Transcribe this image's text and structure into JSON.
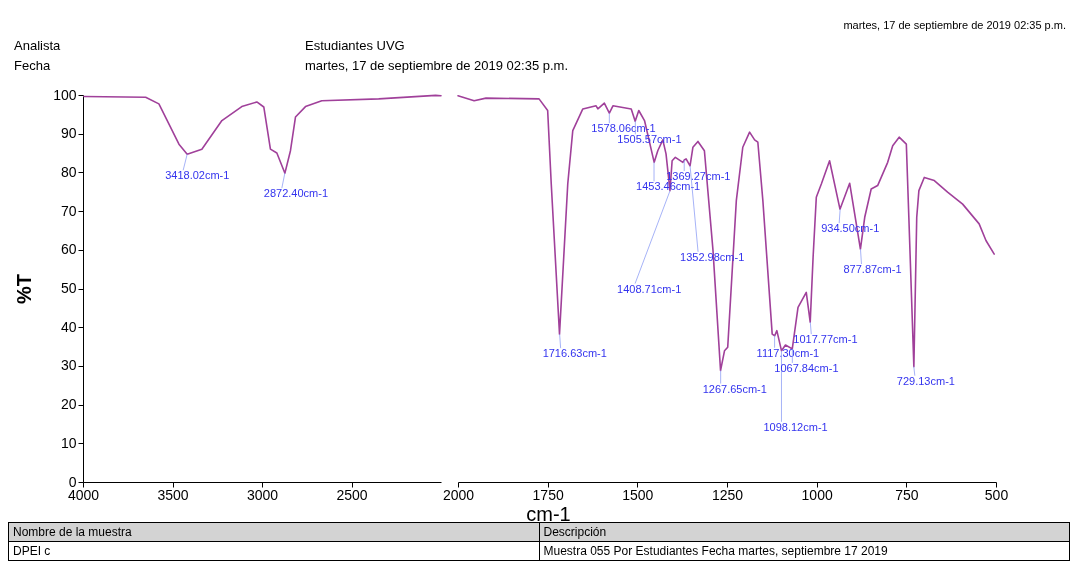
{
  "chart_data": [
    {
      "type": "line",
      "ylabel": "%T",
      "xlim": [
        4000,
        2000
      ],
      "xticks": [
        4000,
        3500,
        3000,
        2500
      ],
      "ylim": [
        0,
        100
      ],
      "yticks": [
        0,
        10,
        20,
        30,
        40,
        50,
        60,
        70,
        80,
        90,
        100
      ],
      "grid": false,
      "marker": "none",
      "line_style": "solid",
      "series": [
        {
          "color": "#a0409a",
          "x": [
            3995,
            3650,
            3576,
            3464,
            3418,
            3336,
            3224,
            3113,
            3029,
            2990,
            2953,
            2917,
            2872,
            2841,
            2813,
            2757,
            2666,
            2348,
            2030,
            2000
          ],
          "values": [
            99.6,
            99.4,
            97.7,
            87.3,
            84.7,
            86,
            93.4,
            97,
            98.2,
            96.9,
            86,
            85,
            79.8,
            85.6,
            94.3,
            97,
            98.5,
            99,
            99.9,
            99.8
          ]
        }
      ],
      "annotations": [
        "martes, 17 de septiembre de 2019 02:35 p.m.",
        "Analista",
        "Estudiantes UVG",
        "Fecha",
        "martes, 17 de septiembre de 2019 02:35 p.m.",
        {
          "text": "3418.02cm-1",
          "x": 3418.02,
          "y": 84.7
        },
        {
          "text": "2872.40cm-1",
          "x": 2872.4,
          "y": 79.8
        },
        "Nombre de la muestra",
        "Descripción",
        "DPEI c",
        "Muestra 055 Por Estudiantes Fecha martes, septiembre 17 2019"
      ]
    },
    {
      "type": "line",
      "xlabel": "cm-1",
      "xlim": [
        2000,
        500
      ],
      "xticks": [
        2000,
        1750,
        1500,
        1250,
        1000,
        750,
        500
      ],
      "ylim": [
        0,
        100
      ],
      "yticks": [
        0,
        10,
        20,
        30,
        40,
        50,
        60,
        70,
        80,
        90,
        100
      ],
      "tick_labels": "x",
      "grid": false,
      "marker": "none",
      "line_style": "solid",
      "series": [
        {
          "color": "#a0409a",
          "x": [
            2000,
            1955,
            1922,
            1774,
            1750,
            1740,
            1717,
            1694,
            1680,
            1652,
            1615,
            1610,
            1592,
            1578,
            1568,
            1517,
            1506,
            1496,
            1480,
            1453,
            1443,
            1429,
            1420,
            1409,
            1403,
            1394,
            1373,
            1369,
            1364,
            1353,
            1345,
            1331,
            1313,
            1289,
            1268,
            1257,
            1248,
            1224,
            1206,
            1187,
            1173,
            1164,
            1150,
            1124,
            1117,
            1111,
            1098,
            1087,
            1068,
            1052,
            1029,
            1018,
            1010,
            1001,
            987,
            964,
            935,
            908,
            878,
            866,
            848,
            830,
            802,
            788,
            770,
            750,
            743,
            729,
            721,
            715,
            700,
            672,
            635,
            593,
            547,
            528,
            505
          ],
          "values": [
            99.8,
            98.5,
            99.2,
            99,
            96,
            77,
            38.2,
            77,
            90.8,
            96.4,
            97.2,
            96.4,
            97.9,
            95.3,
            97.2,
            96.4,
            93.2,
            96,
            93.4,
            82.6,
            85.6,
            88.4,
            84.8,
            75.3,
            83,
            83.9,
            82.6,
            83.2,
            83.5,
            81.7,
            86.5,
            88,
            85.6,
            59.8,
            28.8,
            33.9,
            34.8,
            72.7,
            86.5,
            90.4,
            88.4,
            87.8,
            72.7,
            38.2,
            37.8,
            39.1,
            33.9,
            35.4,
            34.4,
            45.1,
            49,
            41.3,
            58,
            73.6,
            77,
            83,
            70.5,
            77.2,
            60.2,
            68.4,
            75.7,
            76.6,
            82.6,
            86.9,
            89.1,
            87.3,
            68.4,
            29.8,
            68.4,
            75.3,
            78.7,
            77.9,
            74.9,
            71.8,
            66.7,
            62.4,
            58.9
          ]
        }
      ],
      "annotations": [
        {
          "text": "1716.63cm-1",
          "x": 1716.63,
          "y": 38.2
        },
        {
          "text": "1578.06cm-1",
          "x": 1578.06,
          "y": 95.3
        },
        {
          "text": "1505.57cm-1",
          "x": 1505.57,
          "y": 93.2
        },
        {
          "text": "1453.46cm-1",
          "x": 1453.46,
          "y": 82.6
        },
        {
          "text": "1369.27cm-1",
          "x": 1369.27,
          "y": 83.2
        },
        {
          "text": "1408.71cm-1",
          "x": 1408.71,
          "y": 75.3
        },
        {
          "text": "1352.98cm-1",
          "x": 1352.98,
          "y": 81.7
        },
        {
          "text": "1267.65cm-1",
          "x": 1267.65,
          "y": 28.8
        },
        {
          "text": "1117.30cm-1",
          "x": 1117.3,
          "y": 37.8
        },
        {
          "text": "1098.12cm-1",
          "x": 1098.12,
          "y": 33.9
        },
        {
          "text": "1067.84cm-1",
          "x": 1067.84,
          "y": 34.4
        },
        {
          "text": "1017.77cm-1",
          "x": 1017.77,
          "y": 41.3
        },
        {
          "text": "934.50cm-1",
          "x": 934.5,
          "y": 70.5
        },
        {
          "text": "877.87cm-1",
          "x": 877.87,
          "y": 60.2
        },
        {
          "text": "729.13cm-1",
          "x": 729.13,
          "y": 29.8
        }
      ]
    }
  ]
}
